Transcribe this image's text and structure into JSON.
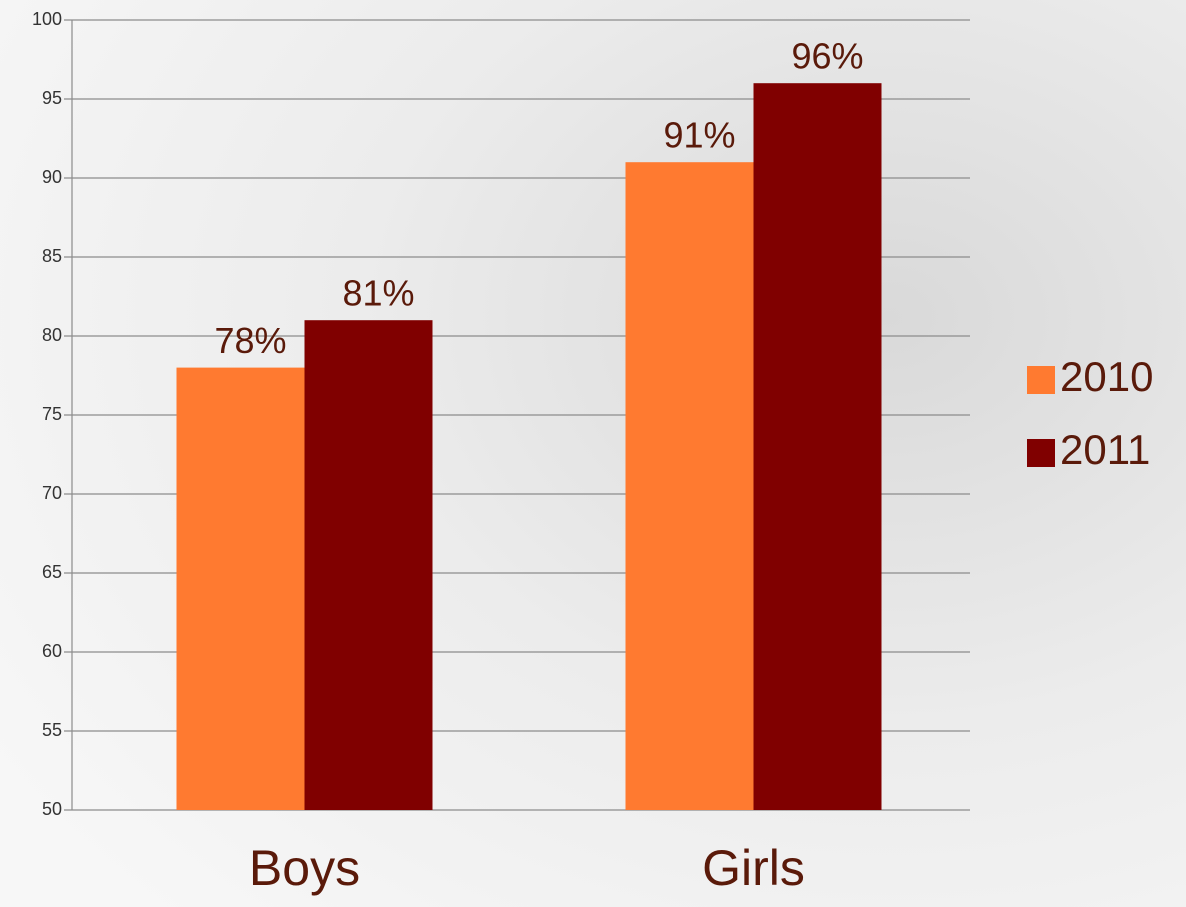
{
  "chart_data": {
    "type": "bar",
    "categories": [
      "Boys",
      "Girls"
    ],
    "series": [
      {
        "name": "2010",
        "color": "#ff7a30",
        "values": [
          78,
          91
        ],
        "value_labels": [
          "78%",
          "91%"
        ]
      },
      {
        "name": "2011",
        "color": "#800000",
        "values": [
          81,
          96
        ],
        "value_labels": [
          "81%",
          "96%"
        ]
      }
    ],
    "ylim": [
      50,
      100
    ],
    "yticks": [
      50,
      55,
      60,
      65,
      70,
      75,
      80,
      85,
      90,
      95,
      100
    ],
    "grid": true,
    "legend": "right"
  }
}
